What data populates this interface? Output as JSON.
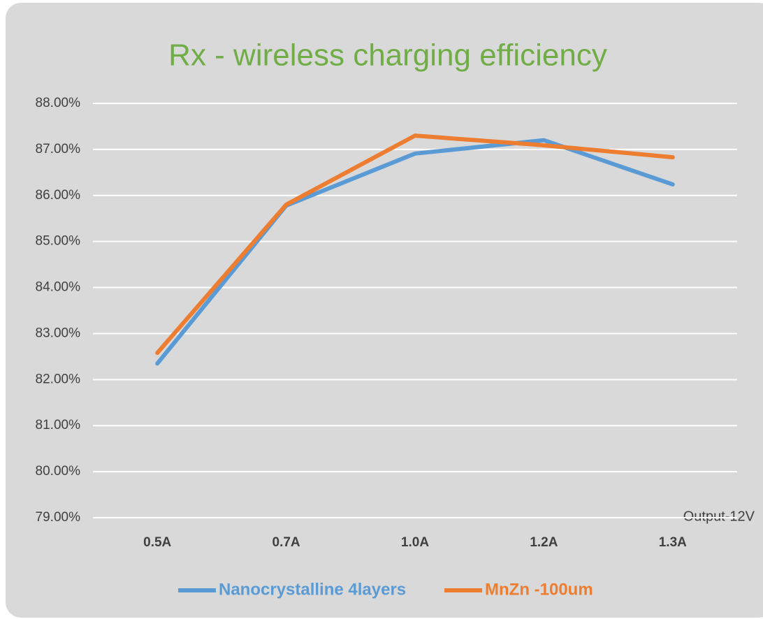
{
  "chart_data": {
    "type": "line",
    "title": "Rx - wireless charging efficiency",
    "annotation": "Output-12V",
    "categories": [
      "0.5A",
      "0.7A",
      "1.0A",
      "1.2A",
      "1.3A"
    ],
    "series": [
      {
        "name": "Nanocrystalline 4layers",
        "color": "#5b9bd5",
        "values": [
          82.35,
          85.78,
          86.91,
          87.2,
          86.24
        ]
      },
      {
        "name": "MnZn -100um",
        "color": "#ed7d31",
        "values": [
          82.58,
          85.8,
          87.3,
          87.09,
          86.83
        ]
      }
    ],
    "ylim": [
      79,
      88
    ],
    "yticks": [
      {
        "value": 79,
        "label": "79.00%"
      },
      {
        "value": 80,
        "label": "80.00%"
      },
      {
        "value": 81,
        "label": "81.00%"
      },
      {
        "value": 82,
        "label": "82.00%"
      },
      {
        "value": 83,
        "label": "83.00%"
      },
      {
        "value": 84,
        "label": "84.00%"
      },
      {
        "value": 85,
        "label": "85.00%"
      },
      {
        "value": 86,
        "label": "86.00%"
      },
      {
        "value": 87,
        "label": "87.00%"
      },
      {
        "value": 88,
        "label": "88.00%"
      }
    ],
    "grid": true,
    "legend": "bottom"
  }
}
